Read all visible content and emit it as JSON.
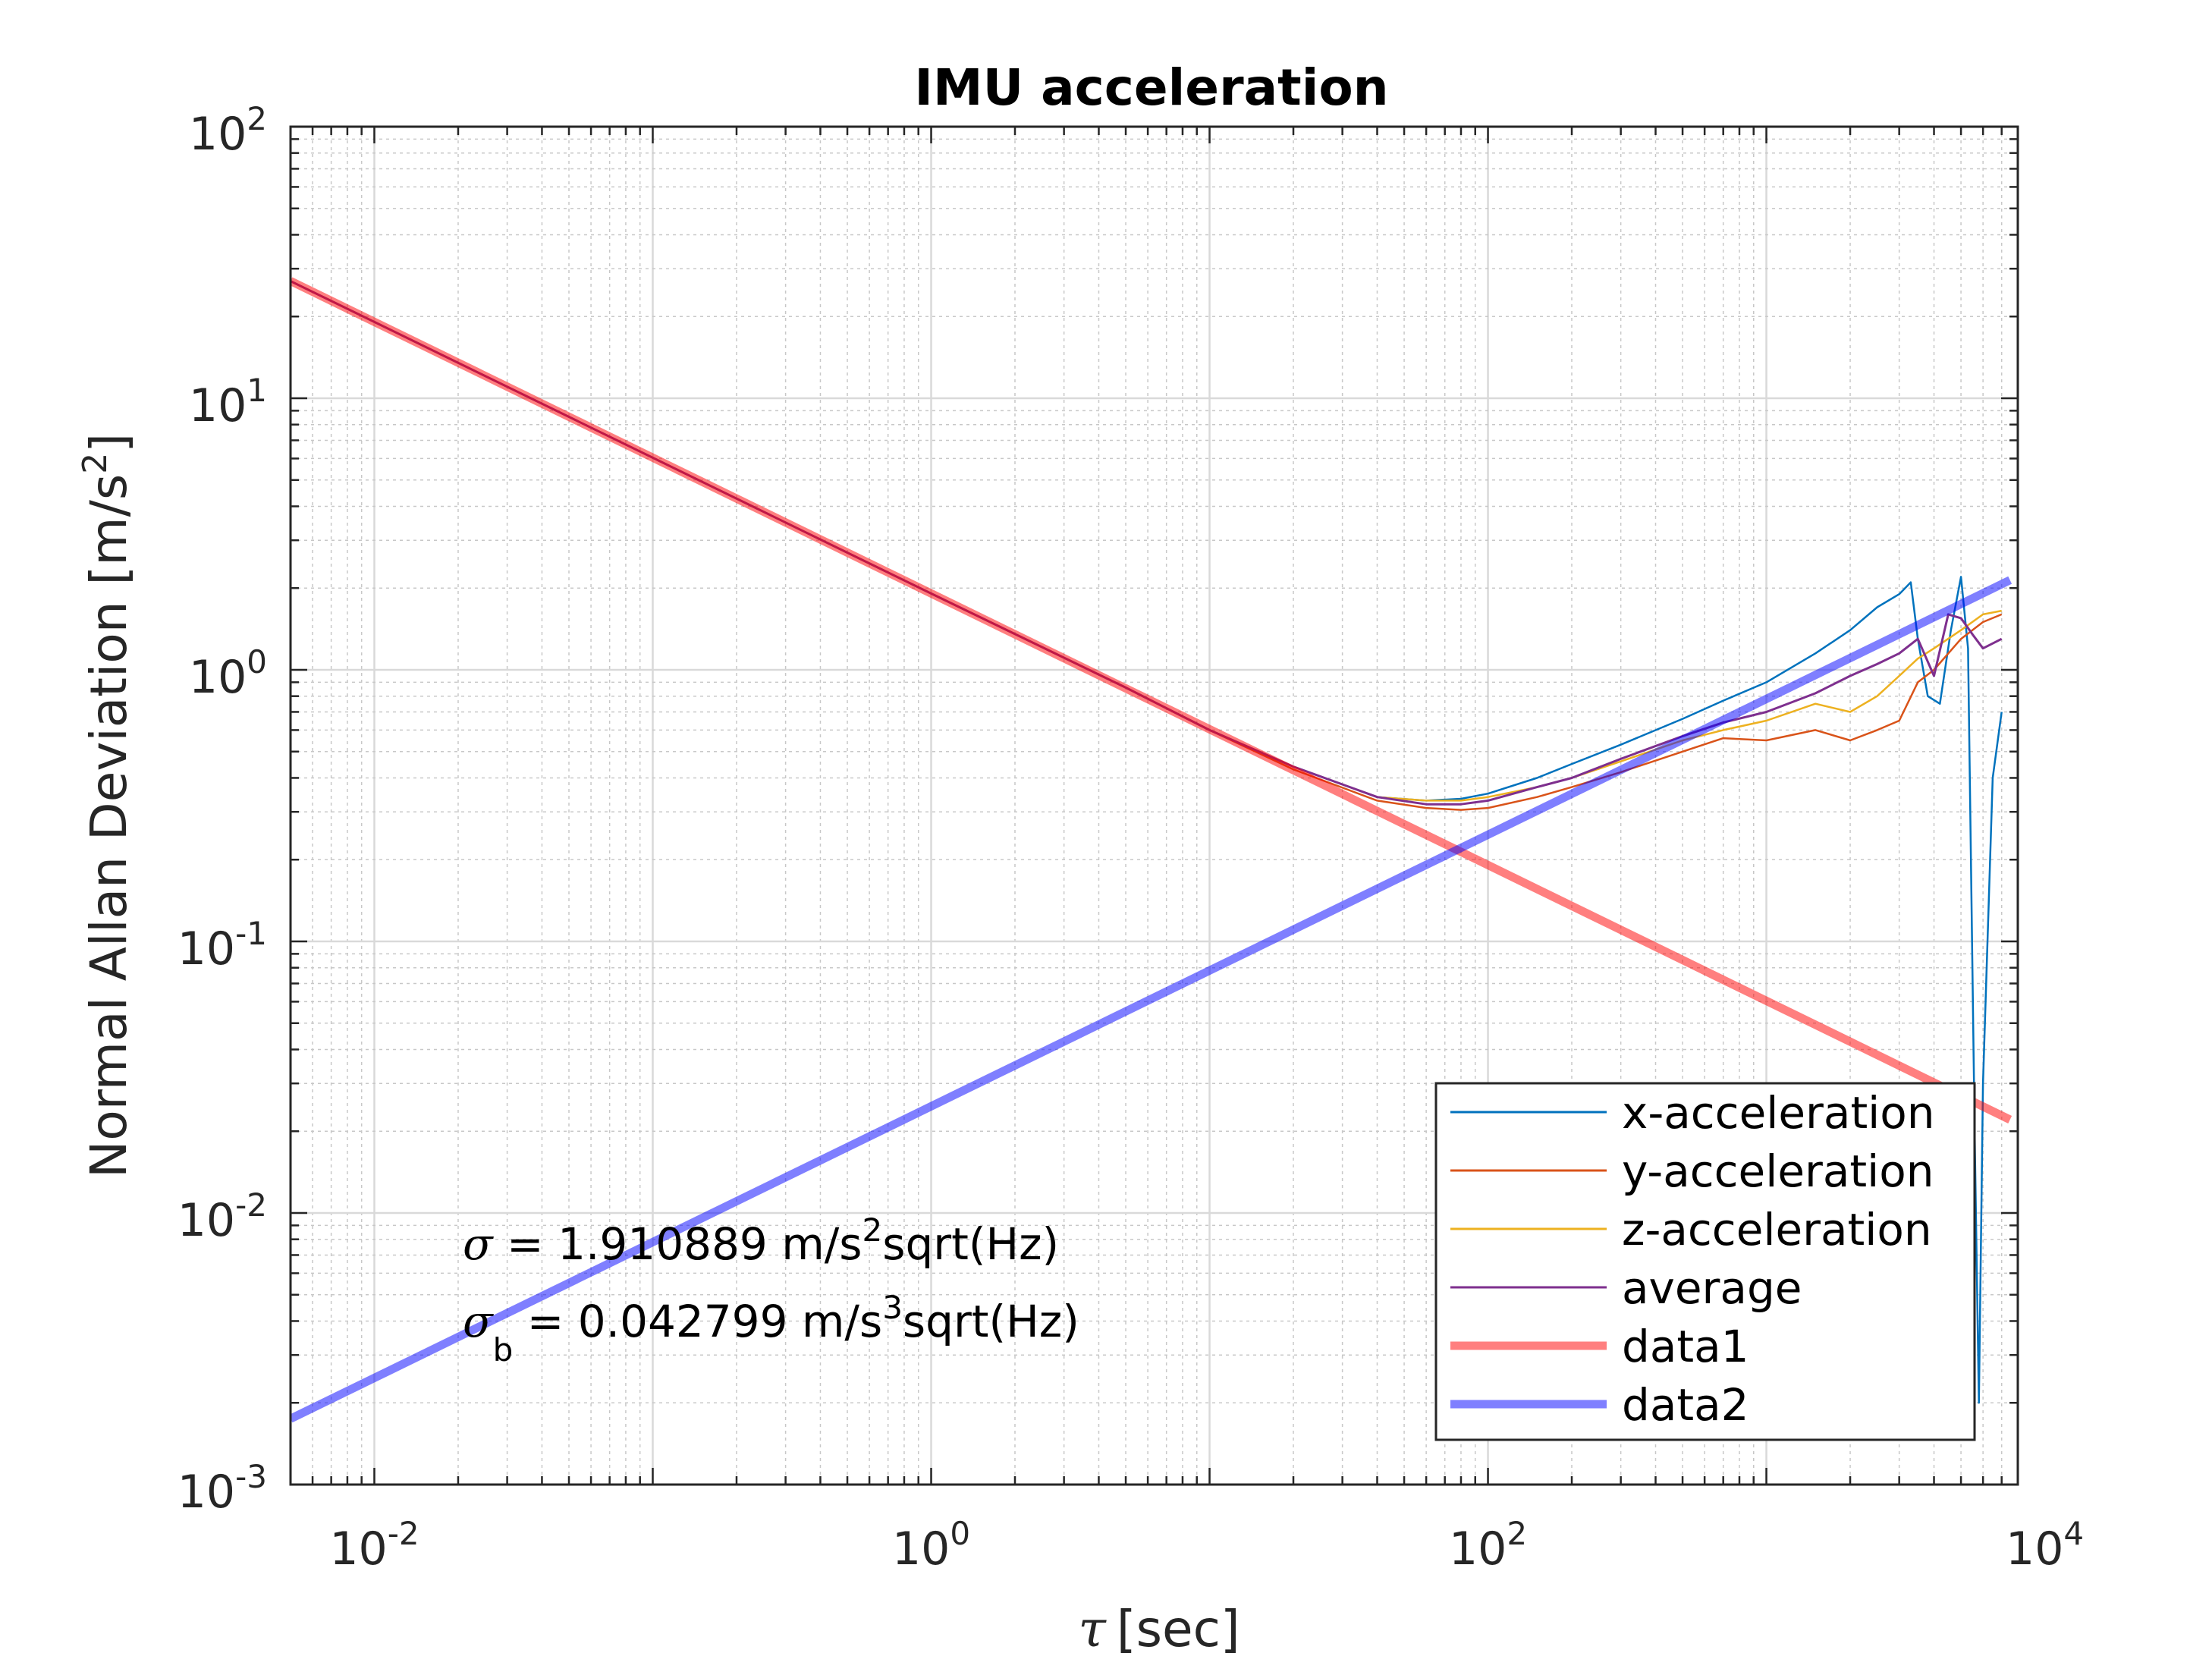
{
  "chart_data": {
    "type": "line",
    "title": "IMU acceleration",
    "xlabel": "[sec]",
    "xlabel_symbol": "τ",
    "ylabel": "Normal Allan Deviation [m/s",
    "ylabel_exp": "2",
    "ylabel_end": "]",
    "xscale": "log",
    "yscale": "log",
    "xlim": [
      0.005,
      8000
    ],
    "ylim": [
      0.001,
      100
    ],
    "grid": true,
    "x_ticks": [
      {
        "base": "10",
        "exp": "-2",
        "value": 0.01
      },
      {
        "base": "10",
        "exp": "0",
        "value": 1
      },
      {
        "base": "10",
        "exp": "2",
        "value": 100
      },
      {
        "base": "10",
        "exp": "4",
        "value": 10000
      }
    ],
    "y_ticks": [
      {
        "base": "10",
        "exp": "-3",
        "value": 0.001
      },
      {
        "base": "10",
        "exp": "-2",
        "value": 0.01
      },
      {
        "base": "10",
        "exp": "-1",
        "value": 0.1
      },
      {
        "base": "10",
        "exp": "0",
        "value": 1
      },
      {
        "base": "10",
        "exp": "1",
        "value": 10
      },
      {
        "base": "10",
        "exp": "2",
        "value": 100
      }
    ],
    "legend_position": "bottom-right",
    "series": [
      {
        "name": "x-acceleration",
        "color": "#0072BD",
        "width": 2.5,
        "x": [
          0.005,
          0.01,
          0.1,
          1,
          5,
          10,
          20,
          40,
          60,
          80,
          100,
          150,
          200,
          300,
          500,
          700,
          1000,
          1500,
          2000,
          2500,
          3000,
          3300,
          3500,
          3800,
          4200,
          4600,
          5000,
          5300,
          5600,
          5800,
          6000,
          6500,
          7000
        ],
        "y": [
          27,
          19.1,
          6.04,
          1.91,
          0.86,
          0.6,
          0.44,
          0.34,
          0.33,
          0.335,
          0.35,
          0.4,
          0.45,
          0.53,
          0.66,
          0.77,
          0.9,
          1.15,
          1.4,
          1.7,
          1.9,
          2.1,
          1.3,
          0.8,
          0.75,
          1.4,
          2.2,
          1.2,
          0.02,
          0.002,
          0.03,
          0.4,
          0.7
        ]
      },
      {
        "name": "y-acceleration",
        "color": "#D95319",
        "width": 2.5,
        "x": [
          0.005,
          0.01,
          0.1,
          1,
          5,
          10,
          20,
          40,
          60,
          80,
          100,
          150,
          200,
          300,
          500,
          700,
          1000,
          1500,
          2000,
          2500,
          3000,
          3500,
          4000,
          5000,
          6000,
          7000
        ],
        "y": [
          27,
          19.1,
          6.04,
          1.91,
          0.86,
          0.6,
          0.43,
          0.33,
          0.31,
          0.305,
          0.31,
          0.34,
          0.37,
          0.42,
          0.5,
          0.56,
          0.55,
          0.6,
          0.55,
          0.6,
          0.65,
          0.9,
          1.0,
          1.3,
          1.5,
          1.6
        ]
      },
      {
        "name": "z-acceleration",
        "color": "#EDB120",
        "width": 2.5,
        "x": [
          0.005,
          0.01,
          0.1,
          1,
          5,
          10,
          20,
          40,
          60,
          80,
          100,
          150,
          200,
          300,
          500,
          700,
          1000,
          1500,
          2000,
          2500,
          3000,
          3500,
          4000,
          5000,
          6000,
          7000
        ],
        "y": [
          27,
          19.1,
          6.04,
          1.91,
          0.86,
          0.6,
          0.44,
          0.34,
          0.33,
          0.33,
          0.34,
          0.37,
          0.4,
          0.46,
          0.55,
          0.6,
          0.65,
          0.75,
          0.7,
          0.8,
          0.95,
          1.1,
          1.2,
          1.4,
          1.6,
          1.65
        ]
      },
      {
        "name": "average",
        "color": "#7E2F8E",
        "width": 3,
        "x": [
          0.005,
          0.01,
          0.1,
          1,
          5,
          10,
          20,
          40,
          60,
          80,
          100,
          150,
          200,
          300,
          500,
          700,
          1000,
          1500,
          2000,
          2500,
          3000,
          3500,
          4000,
          4500,
          5000,
          5500,
          6000,
          7000
        ],
        "y": [
          27,
          19.1,
          6.04,
          1.91,
          0.86,
          0.6,
          0.44,
          0.34,
          0.32,
          0.32,
          0.33,
          0.37,
          0.4,
          0.47,
          0.57,
          0.64,
          0.7,
          0.82,
          0.95,
          1.05,
          1.15,
          1.3,
          0.95,
          1.6,
          1.55,
          1.35,
          1.2,
          1.3
        ]
      },
      {
        "name": "data1",
        "color": "#FF0000",
        "width": 11,
        "opacity": 0.5,
        "x": [
          0.005,
          7500
        ],
        "y": [
          27.03,
          0.02206
        ]
      },
      {
        "name": "data2",
        "color": "#0000FF",
        "width": 11,
        "opacity": 0.5,
        "x": [
          0.005,
          7500
        ],
        "y": [
          0.001747,
          2.14
        ]
      }
    ],
    "annotations": [
      {
        "symbol": "σ",
        "sub": "",
        "text": " = 1.910889 m/s",
        "sup": "2",
        "tail": "sqrt(Hz)"
      },
      {
        "symbol": "σ",
        "sub": "b",
        "text": " = 0.042799 m/s",
        "sup": "3",
        "tail": "sqrt(Hz)"
      }
    ]
  }
}
